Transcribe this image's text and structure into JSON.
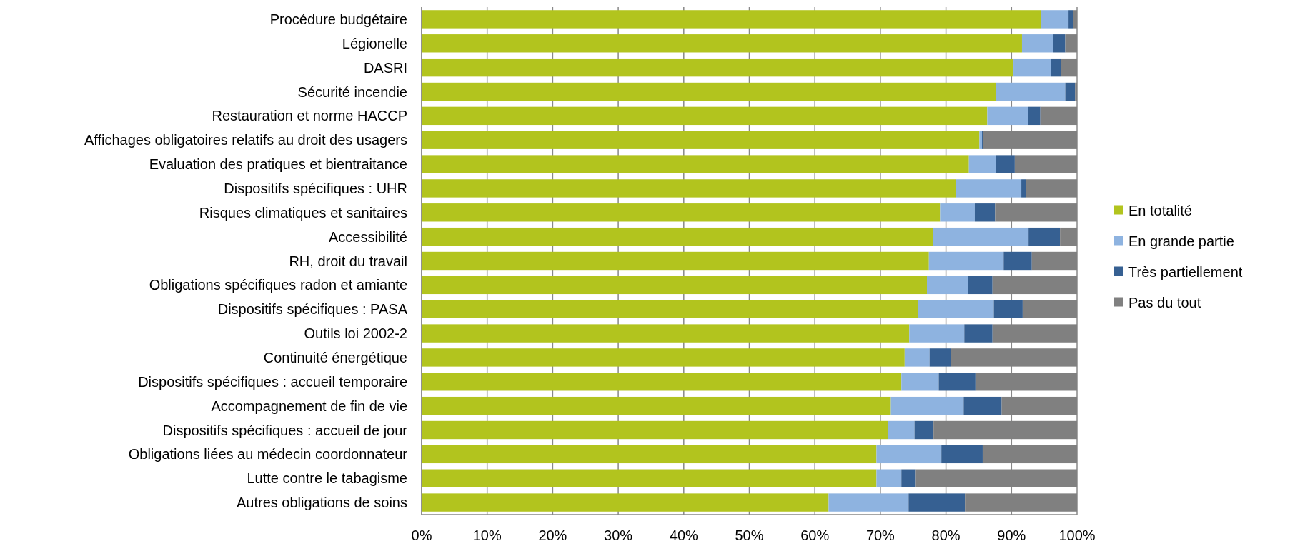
{
  "chart_data": {
    "type": "bar",
    "orientation": "horizontal",
    "stacked": true,
    "categories": [
      "Procédure budgétaire",
      "Légionelle",
      "DASRI",
      "Sécurité incendie",
      "Restauration et norme HACCP",
      "Affichages obligatoires relatifs au droit des usagers",
      "Evaluation des pratiques et bientraitance",
      "Dispositifs spécifiques : UHR",
      "Risques climatiques et sanitaires",
      "Accessibilité",
      "RH, droit du travail",
      "Obligations spécifiques radon et amiante",
      "Dispositifs spécifiques : PASA",
      "Outils loi 2002-2",
      "Continuité énergétique",
      "Dispositifs spécifiques : accueil temporaire",
      "Accompagnement de fin de vie",
      "Dispositifs spécifiques : accueil de jour",
      "Obligations liées au médecin coordonnateur",
      "Lutte contre le tabagisme",
      "Autres obligations de soins"
    ],
    "series": [
      {
        "name": "En totalité",
        "color": "#b2c41e",
        "values": [
          94.5,
          91.6,
          90.3,
          87.6,
          86.3,
          85.1,
          83.5,
          81.5,
          79.1,
          78.0,
          77.4,
          77.1,
          75.7,
          74.4,
          73.7,
          73.2,
          71.6,
          71.1,
          69.4,
          69.4,
          62.1
        ]
      },
      {
        "name": "En grande partie",
        "color": "#8eb3e0",
        "values": [
          4.2,
          4.7,
          5.7,
          10.6,
          6.2,
          0.4,
          4.1,
          10.0,
          5.3,
          14.6,
          11.4,
          6.3,
          11.6,
          8.4,
          3.8,
          5.7,
          11.1,
          4.1,
          9.9,
          3.8,
          12.2
        ]
      },
      {
        "name": "Très partiellement",
        "color": "#366092",
        "values": [
          0.7,
          1.9,
          1.6,
          1.5,
          1.9,
          0.2,
          2.9,
          0.7,
          3.1,
          4.8,
          4.3,
          3.7,
          4.4,
          4.3,
          3.2,
          5.6,
          5.8,
          2.9,
          6.3,
          2.1,
          8.6
        ]
      },
      {
        "name": "Pas du tout",
        "color": "#808080",
        "values": [
          0.6,
          1.8,
          2.4,
          0.3,
          5.6,
          14.3,
          9.5,
          7.8,
          12.5,
          2.6,
          6.9,
          12.9,
          8.3,
          12.9,
          19.3,
          15.5,
          11.5,
          21.9,
          14.4,
          24.7,
          17.1
        ]
      }
    ],
    "xlim": [
      0,
      100
    ],
    "xticks": [
      {
        "value": 0,
        "label": "0%"
      },
      {
        "value": 10,
        "label": "10%"
      },
      {
        "value": 20,
        "label": "20%"
      },
      {
        "value": 30,
        "label": "30%"
      },
      {
        "value": 40,
        "label": "40%"
      },
      {
        "value": 50,
        "label": "50%"
      },
      {
        "value": 60,
        "label": "60%"
      },
      {
        "value": 70,
        "label": "70%"
      },
      {
        "value": 80,
        "label": "80%"
      },
      {
        "value": 90,
        "label": "90%"
      },
      {
        "value": 100,
        "label": "100%"
      }
    ],
    "grid": "x",
    "legend": "right"
  }
}
